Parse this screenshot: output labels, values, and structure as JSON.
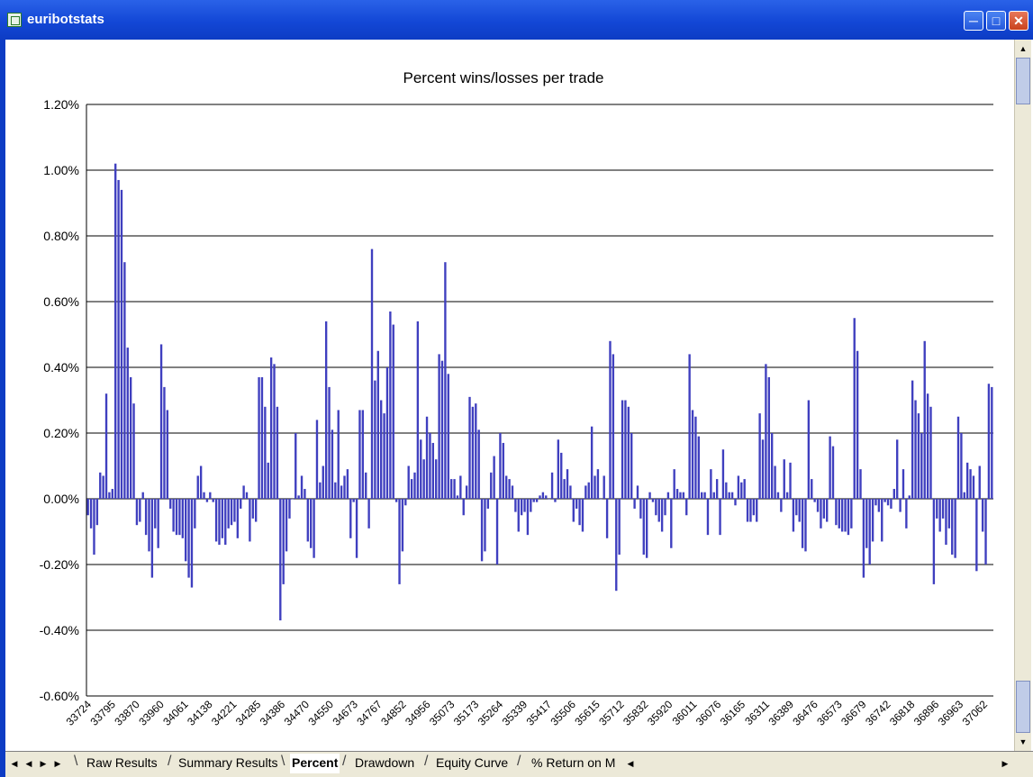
{
  "window": {
    "title": "euribotstats",
    "min_icon": "minimize-icon",
    "max_icon": "maximize-icon",
    "close_icon": "close-icon"
  },
  "tabs": [
    {
      "label": "Raw Results",
      "active": false
    },
    {
      "label": "Summary Results",
      "active": false
    },
    {
      "label": "Percent",
      "active": true
    },
    {
      "label": "Drawdown",
      "active": false
    },
    {
      "label": "Equity Curve",
      "active": false
    },
    {
      "label": "% Return on M",
      "active": false
    }
  ],
  "colors": {
    "bar": "#3f3fbf",
    "grid": "#000000",
    "titlebar": "#1347d6"
  },
  "chart_data": {
    "type": "bar",
    "title": "Percent wins/losses per trade",
    "y_ticks": [
      "1.20%",
      "1.00%",
      "0.80%",
      "0.60%",
      "0.40%",
      "0.20%",
      "0.00%",
      "-0.20%",
      "-0.40%",
      "-0.60%"
    ],
    "ylim": [
      -0.6,
      1.2
    ],
    "grid": true,
    "x_labels": [
      "33724",
      "33795",
      "33870",
      "33960",
      "34061",
      "34138",
      "34221",
      "34285",
      "34386",
      "34470",
      "34550",
      "34673",
      "34767",
      "34852",
      "34956",
      "35073",
      "35173",
      "35264",
      "35339",
      "35417",
      "35506",
      "35615",
      "35712",
      "35832",
      "35920",
      "36011",
      "36076",
      "36165",
      "36311",
      "36389",
      "36476",
      "36573",
      "36679",
      "36742",
      "36818",
      "36896",
      "36963",
      "37062"
    ],
    "values": [
      -0.05,
      -0.09,
      -0.17,
      -0.08,
      0.08,
      0.07,
      0.32,
      0.02,
      0.03,
      1.02,
      0.97,
      0.94,
      0.72,
      0.46,
      0.37,
      0.29,
      -0.08,
      -0.07,
      0.02,
      -0.11,
      -0.16,
      -0.24,
      -0.09,
      -0.15,
      0.47,
      0.34,
      0.27,
      -0.03,
      -0.1,
      -0.11,
      -0.11,
      -0.12,
      -0.19,
      -0.24,
      -0.27,
      -0.09,
      0.07,
      0.1,
      0.02,
      -0.01,
      0.02,
      -0.01,
      -0.13,
      -0.14,
      -0.12,
      -0.14,
      -0.09,
      -0.08,
      -0.07,
      -0.12,
      -0.03,
      0.04,
      0.02,
      -0.13,
      -0.06,
      -0.07,
      0.37,
      0.37,
      0.28,
      0.11,
      0.43,
      0.41,
      0.28,
      -0.37,
      -0.26,
      -0.16,
      -0.06,
      0.0,
      0.2,
      0.01,
      0.07,
      0.03,
      -0.13,
      -0.15,
      -0.18,
      0.24,
      0.05,
      0.1,
      0.54,
      0.34,
      0.21,
      0.05,
      0.27,
      0.04,
      0.07,
      0.09,
      -0.12,
      -0.01,
      -0.18,
      0.27,
      0.27,
      0.08,
      -0.09,
      0.76,
      0.36,
      0.45,
      0.3,
      0.26,
      0.4,
      0.57,
      0.53,
      -0.01,
      -0.26,
      -0.16,
      -0.02,
      0.1,
      0.06,
      0.08,
      0.54,
      0.18,
      0.12,
      0.25,
      0.2,
      0.17,
      0.12,
      0.44,
      0.42,
      0.72,
      0.38,
      0.06,
      0.06,
      0.01,
      0.07,
      -0.05,
      0.04,
      0.31,
      0.28,
      0.29,
      0.21,
      -0.19,
      -0.16,
      -0.03,
      0.08,
      0.13,
      -0.2,
      0.2,
      0.17,
      0.07,
      0.06,
      0.04,
      -0.04,
      -0.1,
      -0.05,
      -0.04,
      -0.11,
      -0.04,
      -0.01,
      -0.01,
      0.01,
      0.02,
      0.01,
      0.0,
      0.08,
      -0.01,
      0.18,
      0.14,
      0.06,
      0.09,
      0.04,
      -0.07,
      -0.03,
      -0.08,
      -0.1,
      0.04,
      0.05,
      0.22,
      0.07,
      0.09,
      0.0,
      0.07,
      -0.12,
      0.48,
      0.44,
      -0.28,
      -0.17,
      0.3,
      0.3,
      0.28,
      0.2,
      -0.03,
      0.04,
      -0.06,
      -0.17,
      -0.18,
      0.02,
      -0.01,
      -0.05,
      -0.07,
      -0.1,
      -0.05,
      0.02,
      -0.15,
      0.09,
      0.03,
      0.02,
      0.02,
      -0.05,
      0.44,
      0.27,
      0.25,
      0.19,
      0.02,
      0.02,
      -0.11,
      0.09,
      0.02,
      0.06,
      -0.11,
      0.15,
      0.05,
      0.02,
      0.02,
      -0.02,
      0.07,
      0.05,
      0.06,
      -0.07,
      -0.07,
      -0.05,
      -0.07,
      0.26,
      0.18,
      0.41,
      0.37,
      0.2,
      0.1,
      0.02,
      -0.04,
      0.12,
      0.02,
      0.11,
      -0.1,
      -0.05,
      -0.07,
      -0.15,
      -0.16,
      0.3,
      0.06,
      -0.01,
      -0.04,
      -0.09,
      -0.06,
      -0.07,
      0.19,
      0.16,
      -0.08,
      -0.09,
      -0.1,
      -0.1,
      -0.11,
      -0.09,
      0.55,
      0.45,
      0.09,
      -0.24,
      -0.15,
      -0.2,
      -0.13,
      -0.02,
      -0.04,
      -0.13,
      -0.01,
      -0.02,
      -0.03,
      0.03,
      0.18,
      -0.04,
      0.09,
      -0.09,
      0.01,
      0.36,
      0.3,
      0.26,
      0.2,
      0.48,
      0.32,
      0.28,
      -0.26,
      -0.06,
      -0.1,
      -0.06,
      -0.14,
      -0.09,
      -0.17,
      -0.18,
      0.25,
      0.2,
      0.02,
      0.11,
      0.09,
      0.07,
      -0.22,
      0.1,
      -0.1,
      -0.2,
      0.35,
      0.34
    ]
  }
}
